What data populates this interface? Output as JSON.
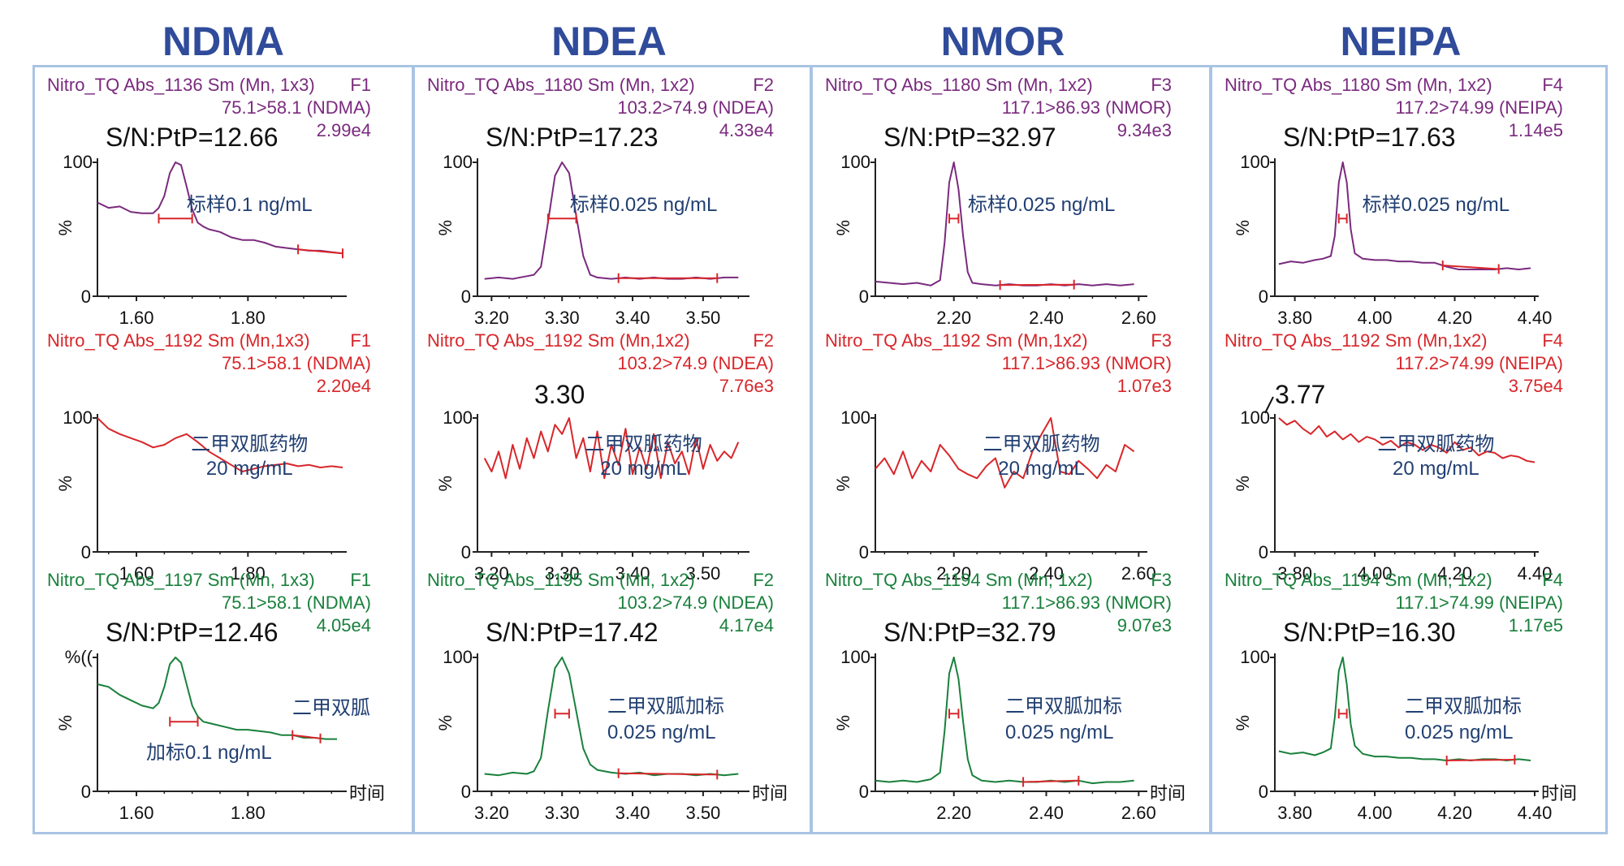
{
  "columns": [
    {
      "title": "NDMA",
      "color": "#2f4b9a"
    },
    {
      "title": "NDEA",
      "color": "#2f4b9a"
    },
    {
      "title": "NMOR",
      "color": "#2f4b9a"
    },
    {
      "title": "NEIPA",
      "color": "#2f4b9a"
    }
  ],
  "colors": {
    "purple": "#7a2a7e",
    "red": "#d8262a",
    "green": "#19803c",
    "annotation": "#213f72",
    "border": "#a9c4e3"
  },
  "time_label": "时间",
  "chart_data": [
    {
      "type": "line",
      "col": 0,
      "row": 0,
      "color": "#7a2a7e",
      "header_left": "Nitro_TQ Abs_1136 Sm (Mn, 1x3)",
      "header_right": "F1",
      "transition": "75.1>58.1 (NDMA)",
      "intensity": "2.99e4",
      "sn": "S/N:PtP=12.66",
      "annotation": [
        "标样0.1 ng/mL"
      ],
      "y_top_label": "100",
      "y_zero_label": "0",
      "ylabel": "%",
      "xlabel": "",
      "xlim": [
        1.53,
        1.97
      ],
      "xticks": [
        "1.60",
        "1.80"
      ],
      "ylim": [
        0,
        100
      ],
      "x": [
        1.53,
        1.55,
        1.57,
        1.59,
        1.61,
        1.63,
        1.64,
        1.65,
        1.66,
        1.67,
        1.68,
        1.69,
        1.7,
        1.71,
        1.72,
        1.73,
        1.75,
        1.77,
        1.79,
        1.81,
        1.83,
        1.85,
        1.87,
        1.89,
        1.91,
        1.93,
        1.95,
        1.97
      ],
      "y": [
        70,
        66,
        67,
        63,
        62,
        62,
        66,
        75,
        92,
        100,
        98,
        82,
        65,
        55,
        52,
        50,
        48,
        44,
        42,
        42,
        40,
        37,
        36,
        35,
        34,
        34,
        33,
        32
      ],
      "markers": [
        [
          1.64,
          1.7
        ],
        [
          1.89,
          1.97
        ]
      ]
    },
    {
      "type": "line",
      "col": 1,
      "row": 0,
      "color": "#7a2a7e",
      "header_left": "Nitro_TQ Abs_1180 Sm (Mn, 1x2)",
      "header_right": "F2",
      "transition": "103.2>74.9 (NDEA)",
      "intensity": "4.33e4",
      "sn": "S/N:PtP=17.23",
      "annotation": [
        "标样0.025 ng/mL"
      ],
      "y_top_label": "100",
      "y_zero_label": "0",
      "ylabel": "%",
      "xlabel": "",
      "xlim": [
        3.18,
        3.56
      ],
      "xticks": [
        "3.20",
        "3.30",
        "3.40",
        "3.50"
      ],
      "ylim": [
        0,
        100
      ],
      "x": [
        3.19,
        3.21,
        3.23,
        3.25,
        3.26,
        3.27,
        3.28,
        3.29,
        3.3,
        3.31,
        3.32,
        3.33,
        3.34,
        3.35,
        3.37,
        3.39,
        3.41,
        3.43,
        3.45,
        3.47,
        3.49,
        3.51,
        3.53,
        3.55
      ],
      "y": [
        13,
        14,
        13,
        15,
        16,
        22,
        55,
        90,
        100,
        92,
        60,
        30,
        16,
        14,
        13,
        14,
        13,
        14,
        13,
        13,
        14,
        13,
        14,
        14
      ],
      "markers": [
        [
          3.28,
          3.32
        ],
        [
          3.38,
          3.52
        ]
      ]
    },
    {
      "type": "line",
      "col": 2,
      "row": 0,
      "color": "#7a2a7e",
      "header_left": "Nitro_TQ Abs_1180 Sm (Mn, 1x2)",
      "header_right": "F3",
      "transition": "117.1>86.93 (NMOR)",
      "intensity": "9.34e3",
      "sn": "S/N:PtP=32.97",
      "annotation": [
        "标样0.025 ng/mL"
      ],
      "y_top_label": "100",
      "y_zero_label": "0",
      "ylabel": "%",
      "xlabel": "",
      "xlim": [
        2.03,
        2.61
      ],
      "xticks": [
        "2.20",
        "2.40",
        "2.60"
      ],
      "ylim": [
        0,
        100
      ],
      "x": [
        2.03,
        2.06,
        2.09,
        2.12,
        2.15,
        2.17,
        2.18,
        2.19,
        2.2,
        2.21,
        2.22,
        2.23,
        2.24,
        2.26,
        2.29,
        2.32,
        2.35,
        2.38,
        2.41,
        2.44,
        2.47,
        2.5,
        2.53,
        2.56,
        2.59
      ],
      "y": [
        11,
        10,
        9,
        10,
        8,
        12,
        40,
        85,
        100,
        80,
        45,
        18,
        10,
        9,
        8,
        9,
        8,
        8,
        9,
        8,
        9,
        8,
        9,
        8,
        9
      ],
      "markers": [
        [
          2.19,
          2.21
        ],
        [
          2.3,
          2.46
        ]
      ]
    },
    {
      "type": "line",
      "col": 3,
      "row": 0,
      "color": "#7a2a7e",
      "header_left": "Nitro_TQ Abs_1180 Sm (Mn, 1x2)",
      "header_right": "F4",
      "transition": "117.2>74.99 (NEIPA)",
      "intensity": "1.14e5",
      "sn": "S/N:PtP=17.63",
      "annotation": [
        "标样0.025 ng/mL"
      ],
      "y_top_label": "100",
      "y_zero_label": "0",
      "ylabel": "%",
      "xlabel": "",
      "xlim": [
        3.75,
        4.4
      ],
      "xticks": [
        "3.80",
        "4.00",
        "4.20",
        "4.40"
      ],
      "ylim": [
        0,
        100
      ],
      "x": [
        3.76,
        3.79,
        3.82,
        3.85,
        3.87,
        3.89,
        3.9,
        3.91,
        3.92,
        3.93,
        3.94,
        3.95,
        3.97,
        4.0,
        4.03,
        4.06,
        4.09,
        4.12,
        4.15,
        4.18,
        4.21,
        4.24,
        4.27,
        4.3,
        4.33,
        4.36,
        4.39
      ],
      "y": [
        24,
        26,
        25,
        27,
        28,
        30,
        45,
        85,
        100,
        85,
        50,
        32,
        28,
        27,
        27,
        26,
        26,
        25,
        25,
        22,
        20,
        20,
        20,
        20,
        21,
        20,
        21
      ],
      "markers": [
        [
          3.91,
          3.93
        ],
        [
          4.17,
          4.31
        ]
      ]
    },
    {
      "type": "line",
      "col": 0,
      "row": 1,
      "color": "#d8262a",
      "header_left": "Nitro_TQ Abs_1192 Sm (Mn,1x3)",
      "header_right": "F1",
      "transition": "75.1>58.1 (NDMA)",
      "intensity": "2.20e4",
      "sn": "",
      "annotation": [
        "二甲双胍药物",
        "20 mg/mL"
      ],
      "y_top_label": "100",
      "y_zero_label": "0",
      "ylabel": "%",
      "xlabel": "",
      "xlim": [
        1.53,
        1.97
      ],
      "xticks": [
        "1.60",
        "1.80"
      ],
      "ylim": [
        0,
        100
      ],
      "x": [
        1.53,
        1.55,
        1.57,
        1.59,
        1.61,
        1.63,
        1.65,
        1.67,
        1.69,
        1.71,
        1.73,
        1.75,
        1.77,
        1.79,
        1.81,
        1.83,
        1.85,
        1.87,
        1.89,
        1.91,
        1.93,
        1.95,
        1.97
      ],
      "y": [
        100,
        92,
        88,
        85,
        82,
        78,
        80,
        85,
        88,
        82,
        75,
        70,
        65,
        60,
        62,
        64,
        65,
        66,
        64,
        65,
        63,
        64,
        63
      ],
      "markers": []
    },
    {
      "type": "line",
      "col": 1,
      "row": 1,
      "color": "#d8262a",
      "header_left": "Nitro_TQ Abs_1192 Sm (Mn,1x2)",
      "header_right": "F2",
      "transition": "103.2>74.9 (NDEA)",
      "intensity": "7.76e3",
      "sn": "3.30",
      "annotation": [
        "二甲双胍药物",
        "20 mg/mL"
      ],
      "y_top_label": "100",
      "y_zero_label": "0",
      "ylabel": "%",
      "xlabel": "",
      "xlim": [
        3.18,
        3.56
      ],
      "xticks": [
        "3.20",
        "3.30",
        "3.40",
        "3.50"
      ],
      "ylim": [
        0,
        100
      ],
      "x": [
        3.19,
        3.2,
        3.21,
        3.22,
        3.23,
        3.24,
        3.25,
        3.26,
        3.27,
        3.28,
        3.29,
        3.3,
        3.31,
        3.32,
        3.33,
        3.34,
        3.35,
        3.36,
        3.37,
        3.38,
        3.39,
        3.4,
        3.41,
        3.42,
        3.43,
        3.44,
        3.45,
        3.46,
        3.47,
        3.48,
        3.49,
        3.5,
        3.51,
        3.52,
        3.53,
        3.54,
        3.55
      ],
      "y": [
        70,
        60,
        75,
        55,
        80,
        62,
        85,
        70,
        90,
        75,
        95,
        88,
        100,
        70,
        85,
        60,
        90,
        55,
        80,
        65,
        92,
        58,
        78,
        62,
        88,
        55,
        82,
        66,
        75,
        58,
        85,
        62,
        80,
        68,
        75,
        70,
        82
      ],
      "markers": []
    },
    {
      "type": "line",
      "col": 2,
      "row": 1,
      "color": "#d8262a",
      "header_left": "Nitro_TQ Abs_1192 Sm (Mn,1x2)",
      "header_right": "F3",
      "transition": "117.1>86.93 (NMOR)",
      "intensity": "1.07e3",
      "sn": "",
      "annotation": [
        "二甲双胍药物",
        "20 mg/mL"
      ],
      "y_top_label": "100",
      "y_zero_label": "0",
      "ylabel": "%",
      "xlabel": "",
      "xlim": [
        2.03,
        2.61
      ],
      "xticks": [
        "2.20",
        "2.40",
        "2.60"
      ],
      "ylim": [
        0,
        100
      ],
      "x": [
        2.03,
        2.05,
        2.07,
        2.09,
        2.11,
        2.13,
        2.15,
        2.17,
        2.19,
        2.21,
        2.23,
        2.25,
        2.27,
        2.29,
        2.31,
        2.33,
        2.35,
        2.37,
        2.39,
        2.41,
        2.43,
        2.45,
        2.47,
        2.49,
        2.51,
        2.53,
        2.55,
        2.57,
        2.59
      ],
      "y": [
        62,
        70,
        58,
        75,
        55,
        68,
        60,
        80,
        72,
        62,
        58,
        55,
        64,
        70,
        48,
        60,
        55,
        75,
        88,
        100,
        60,
        58,
        68,
        62,
        55,
        65,
        60,
        80,
        75
      ],
      "markers": []
    },
    {
      "type": "line",
      "col": 3,
      "row": 1,
      "color": "#d8262a",
      "header_left": "Nitro_TQ Abs_1192 Sm (Mn,1x2)",
      "header_right": "F4",
      "transition": "117.2>74.99 (NEIPA)",
      "intensity": "3.75e4",
      "sn": "3.77",
      "annotation": [
        "二甲双胍药物",
        "20 mg/mL"
      ],
      "y_top_label": "100",
      "y_zero_label": "0",
      "ylabel": "%",
      "xlabel": "",
      "xlim": [
        3.75,
        4.4
      ],
      "xticks": [
        "3.80",
        "4.00",
        "4.20",
        "4.40"
      ],
      "ylim": [
        0,
        100
      ],
      "x": [
        3.76,
        3.78,
        3.8,
        3.82,
        3.84,
        3.86,
        3.88,
        3.9,
        3.92,
        3.94,
        3.96,
        3.98,
        4.0,
        4.02,
        4.04,
        4.06,
        4.08,
        4.1,
        4.12,
        4.14,
        4.16,
        4.18,
        4.2,
        4.22,
        4.24,
        4.26,
        4.28,
        4.3,
        4.32,
        4.34,
        4.36,
        4.38,
        4.4
      ],
      "y": [
        100,
        95,
        98,
        92,
        88,
        94,
        86,
        90,
        84,
        88,
        82,
        86,
        84,
        80,
        83,
        78,
        82,
        80,
        76,
        80,
        78,
        74,
        82,
        76,
        78,
        72,
        75,
        74,
        70,
        72,
        71,
        68,
        67
      ],
      "markers": []
    },
    {
      "type": "line",
      "col": 0,
      "row": 2,
      "color": "#19803c",
      "header_left": "Nitro_TQ Abs_1197 Sm (Mn, 1x3)",
      "header_right": "F1",
      "transition": "75.1>58.1 (NDMA)",
      "intensity": "4.05e4",
      "sn": "S/N:PtP=12.46",
      "annotation": [
        "二甲双胍",
        "加标0.1 ng/mL"
      ],
      "y_top_label": "%((",
      "y_zero_label": "0",
      "ylabel": "%",
      "xlabel": "时间",
      "xlim": [
        1.53,
        1.97
      ],
      "xticks": [
        "1.60",
        "1.80"
      ],
      "ylim": [
        0,
        100
      ],
      "x": [
        1.53,
        1.55,
        1.57,
        1.59,
        1.61,
        1.63,
        1.64,
        1.65,
        1.66,
        1.67,
        1.68,
        1.69,
        1.7,
        1.71,
        1.72,
        1.74,
        1.76,
        1.78,
        1.8,
        1.82,
        1.84,
        1.86,
        1.88,
        1.9,
        1.92,
        1.94,
        1.96
      ],
      "y": [
        80,
        78,
        72,
        68,
        64,
        62,
        66,
        78,
        95,
        100,
        96,
        80,
        64,
        56,
        52,
        50,
        48,
        46,
        46,
        45,
        44,
        42,
        42,
        40,
        40,
        39,
        39
      ],
      "markers": [
        [
          1.66,
          1.71
        ],
        [
          1.88,
          1.93
        ]
      ]
    },
    {
      "type": "line",
      "col": 1,
      "row": 2,
      "color": "#19803c",
      "header_left": "Nitro_TQ Abs_1195 Sm (Mn, 1x2)",
      "header_right": "F2",
      "transition": "103.2>74.9 (NDEA)",
      "intensity": "4.17e4",
      "sn": "S/N:PtP=17.42",
      "annotation": [
        "二甲双胍加标",
        "0.025 ng/mL"
      ],
      "y_top_label": "100",
      "y_zero_label": "0",
      "ylabel": "%",
      "xlabel": "时间",
      "xlim": [
        3.18,
        3.56
      ],
      "xticks": [
        "3.20",
        "3.30",
        "3.40",
        "3.50"
      ],
      "ylim": [
        0,
        100
      ],
      "x": [
        3.19,
        3.21,
        3.23,
        3.25,
        3.26,
        3.27,
        3.28,
        3.29,
        3.3,
        3.31,
        3.32,
        3.33,
        3.34,
        3.35,
        3.37,
        3.39,
        3.41,
        3.43,
        3.45,
        3.47,
        3.49,
        3.51,
        3.53,
        3.55
      ],
      "y": [
        13,
        12,
        14,
        13,
        15,
        25,
        60,
        92,
        100,
        88,
        60,
        32,
        20,
        16,
        14,
        13,
        14,
        12,
        13,
        13,
        12,
        13,
        12,
        13
      ],
      "markers": [
        [
          3.29,
          3.31
        ],
        [
          3.38,
          3.52
        ]
      ]
    },
    {
      "type": "line",
      "col": 2,
      "row": 2,
      "color": "#19803c",
      "header_left": "Nitro_TQ Abs_1194 Sm (Mn, 1x2)",
      "header_right": "F3",
      "transition": "117.1>86.93 (NMOR)",
      "intensity": "9.07e3",
      "sn": "S/N:PtP=32.79",
      "annotation": [
        "二甲双胍加标",
        "0.025 ng/mL"
      ],
      "y_top_label": "100",
      "y_zero_label": "0",
      "ylabel": "%",
      "xlabel": "时间",
      "xlim": [
        2.03,
        2.61
      ],
      "xticks": [
        "2.20",
        "2.40",
        "2.60"
      ],
      "ylim": [
        0,
        100
      ],
      "x": [
        2.03,
        2.06,
        2.09,
        2.12,
        2.15,
        2.17,
        2.18,
        2.19,
        2.2,
        2.21,
        2.22,
        2.23,
        2.24,
        2.26,
        2.29,
        2.32,
        2.35,
        2.38,
        2.41,
        2.44,
        2.47,
        2.5,
        2.53,
        2.56,
        2.59
      ],
      "y": [
        8,
        7,
        8,
        7,
        9,
        14,
        45,
        88,
        100,
        84,
        52,
        24,
        12,
        8,
        7,
        8,
        7,
        7,
        8,
        7,
        8,
        6,
        7,
        7,
        8
      ],
      "markers": [
        [
          2.19,
          2.21
        ],
        [
          2.35,
          2.47
        ]
      ]
    },
    {
      "type": "line",
      "col": 3,
      "row": 2,
      "color": "#19803c",
      "header_left": "Nitro_TQ Abs_1194 Sm (Mn, 1x2)",
      "header_right": "F4",
      "transition": "117.1>74.99 (NEIPA)",
      "intensity": "1.17e5",
      "sn": "S/N:PtP=16.30",
      "annotation": [
        "二甲双胍加标",
        "0.025 ng/mL"
      ],
      "y_top_label": "100",
      "y_zero_label": "0",
      "ylabel": "%",
      "xlabel": "时间",
      "xlim": [
        3.75,
        4.4
      ],
      "xticks": [
        "3.80",
        "4.00",
        "4.20",
        "4.40"
      ],
      "ylim": [
        0,
        100
      ],
      "x": [
        3.76,
        3.79,
        3.82,
        3.85,
        3.87,
        3.89,
        3.9,
        3.91,
        3.92,
        3.93,
        3.94,
        3.95,
        3.97,
        4.0,
        4.03,
        4.06,
        4.09,
        4.12,
        4.15,
        4.18,
        4.21,
        4.24,
        4.27,
        4.3,
        4.33,
        4.36,
        4.39
      ],
      "y": [
        30,
        28,
        29,
        27,
        29,
        32,
        55,
        90,
        100,
        80,
        50,
        34,
        28,
        26,
        26,
        25,
        25,
        24,
        24,
        23,
        24,
        23,
        24,
        24,
        23,
        24,
        23
      ],
      "markers": [
        [
          3.91,
          3.93
        ],
        [
          4.18,
          4.35
        ]
      ]
    }
  ]
}
